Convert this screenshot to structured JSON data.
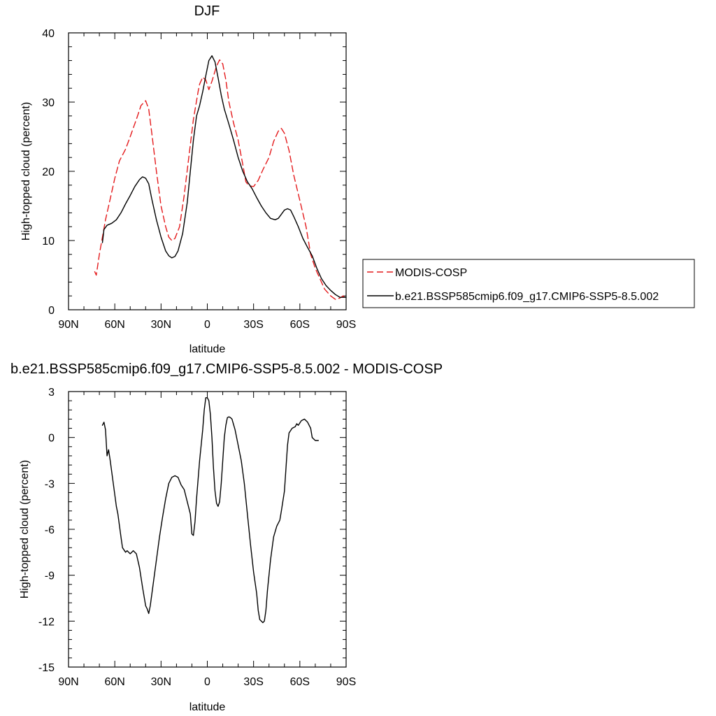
{
  "chart_data": [
    {
      "type": "line",
      "title": "DJF",
      "xlabel": "latitude",
      "ylabel": "High-topped cloud (percent)",
      "xlim": [
        90,
        -90
      ],
      "ylim": [
        0,
        40
      ],
      "xticks": [
        90,
        60,
        30,
        0,
        -30,
        -60,
        -90
      ],
      "xtick_labels": [
        "90N",
        "60N",
        "30N",
        "0",
        "30S",
        "60S",
        "90S"
      ],
      "yticks": [
        0,
        10,
        20,
        30,
        40
      ],
      "ytick_labels": [
        "0",
        "10",
        "20",
        "30",
        "40"
      ],
      "legend_position": "right",
      "series": [
        {
          "name": "MODIS-COSP",
          "color": "#e41a1c",
          "dash": "dashed",
          "points": [
            [
              73,
              5.5
            ],
            [
              72,
              5
            ],
            [
              70,
              8
            ],
            [
              68,
              10.5
            ],
            [
              66,
              13
            ],
            [
              63,
              16
            ],
            [
              60,
              19
            ],
            [
              57,
              21.5
            ],
            [
              53,
              23.2
            ],
            [
              50,
              25
            ],
            [
              46,
              27.5
            ],
            [
              43,
              29.5
            ],
            [
              40,
              30.2
            ],
            [
              38,
              29
            ],
            [
              36,
              25.5
            ],
            [
              33,
              20
            ],
            [
              30,
              15
            ],
            [
              27,
              12
            ],
            [
              25,
              10.5
            ],
            [
              23,
              10
            ],
            [
              21,
              10.3
            ],
            [
              18,
              12
            ],
            [
              15,
              16.5
            ],
            [
              12,
              22
            ],
            [
              9,
              27.5
            ],
            [
              6,
              31.5
            ],
            [
              5,
              32.6
            ],
            [
              3,
              33.6
            ],
            [
              1,
              33.2
            ],
            [
              -1,
              31.8
            ],
            [
              -3,
              33
            ],
            [
              -6,
              35.2
            ],
            [
              -8,
              36.1
            ],
            [
              -10,
              35.5
            ],
            [
              -12,
              33.2
            ],
            [
              -14,
              30
            ],
            [
              -17,
              27
            ],
            [
              -20,
              24.5
            ],
            [
              -23,
              21
            ],
            [
              -25,
              18.5
            ],
            [
              -27,
              17.9
            ],
            [
              -30,
              17.8
            ],
            [
              -33,
              18.7
            ],
            [
              -36,
              20.2
            ],
            [
              -40,
              22
            ],
            [
              -43,
              24.3
            ],
            [
              -46,
              25.8
            ],
            [
              -48,
              26.2
            ],
            [
              -50,
              25.5
            ],
            [
              -53,
              23
            ],
            [
              -56,
              19.5
            ],
            [
              -60,
              15.8
            ],
            [
              -64,
              12
            ],
            [
              -67,
              8
            ],
            [
              -70,
              6
            ],
            [
              -73,
              4.5
            ],
            [
              -76,
              3
            ],
            [
              -80,
              2
            ],
            [
              -83,
              1.5
            ],
            [
              -86,
              1.7
            ],
            [
              -88,
              2
            ],
            [
              -89,
              1.8
            ]
          ]
        },
        {
          "name": "b.e21.BSSP585cmip6.f09_g17.CMIP6-SSP5-8.5.002",
          "color": "#000000",
          "dash": "solid",
          "points": [
            [
              68,
              9.7
            ],
            [
              67,
              11.6
            ],
            [
              65,
              12.2
            ],
            [
              62,
              12.5
            ],
            [
              59,
              13
            ],
            [
              56,
              14
            ],
            [
              53,
              15.3
            ],
            [
              50,
              16.5
            ],
            [
              47,
              17.8
            ],
            [
              44,
              18.8
            ],
            [
              42,
              19.2
            ],
            [
              40,
              19
            ],
            [
              38,
              18.2
            ],
            [
              36,
              16
            ],
            [
              33,
              13
            ],
            [
              30,
              10.5
            ],
            [
              27,
              8.5
            ],
            [
              25,
              7.8
            ],
            [
              23,
              7.5
            ],
            [
              21,
              7.7
            ],
            [
              19,
              8.5
            ],
            [
              16,
              11
            ],
            [
              13,
              15.5
            ],
            [
              11,
              20
            ],
            [
              9,
              24.5
            ],
            [
              7,
              28
            ],
            [
              5,
              29.5
            ],
            [
              3,
              31.5
            ],
            [
              1,
              33.8
            ],
            [
              -1,
              36
            ],
            [
              -3,
              36.7
            ],
            [
              -5,
              35.8
            ],
            [
              -7,
              33.5
            ],
            [
              -9,
              31
            ],
            [
              -11,
              29
            ],
            [
              -14,
              26.8
            ],
            [
              -17,
              24.5
            ],
            [
              -20,
              22
            ],
            [
              -23,
              20
            ],
            [
              -26,
              18.5
            ],
            [
              -29,
              17.5
            ],
            [
              -32,
              16.2
            ],
            [
              -35,
              15
            ],
            [
              -38,
              14
            ],
            [
              -41,
              13.2
            ],
            [
              -44,
              13
            ],
            [
              -46,
              13.2
            ],
            [
              -48,
              13.8
            ],
            [
              -50,
              14.4
            ],
            [
              -52,
              14.6
            ],
            [
              -54,
              14.4
            ],
            [
              -56,
              13.5
            ],
            [
              -59,
              12
            ],
            [
              -62,
              10.3
            ],
            [
              -65,
              9
            ],
            [
              -68,
              7.8
            ],
            [
              -71,
              6
            ],
            [
              -74,
              4.5
            ],
            [
              -77,
              3.5
            ],
            [
              -80,
              2.8
            ],
            [
              -83,
              2.2
            ],
            [
              -86,
              1.8
            ],
            [
              -88,
              1.8
            ],
            [
              -90,
              1.8
            ]
          ]
        }
      ]
    },
    {
      "type": "line",
      "title": "b.e21.BSSP585cmip6.f09_g17.CMIP6-SSP5-8.5.002 - MODIS-COSP",
      "xlabel": "latitude",
      "ylabel": "High-topped cloud (percent)",
      "xlim": [
        90,
        -90
      ],
      "ylim": [
        -15,
        3
      ],
      "xticks": [
        90,
        60,
        30,
        0,
        -30,
        -60,
        -90
      ],
      "xtick_labels": [
        "90N",
        "60N",
        "30N",
        "0",
        "30S",
        "60S",
        "90S"
      ],
      "yticks": [
        -15,
        -12,
        -9,
        -6,
        -3,
        0,
        3
      ],
      "ytick_labels": [
        "-15",
        "-12",
        "-9",
        "-6",
        "-3",
        "0",
        "3"
      ],
      "series": [
        {
          "color": "#000000",
          "dash": "solid",
          "points": [
            [
              68,
              0.8
            ],
            [
              67,
              1
            ],
            [
              66,
              0.5
            ],
            [
              65,
              -1.2
            ],
            [
              64,
              -0.8
            ],
            [
              63,
              -1.5
            ],
            [
              61,
              -3
            ],
            [
              59,
              -4.5
            ],
            [
              58,
              -5
            ],
            [
              56,
              -6.5
            ],
            [
              55,
              -7.2
            ],
            [
              53,
              -7.5
            ],
            [
              52,
              -7.4
            ],
            [
              50,
              -7.6
            ],
            [
              48,
              -7.4
            ],
            [
              46,
              -7.6
            ],
            [
              44,
              -8.5
            ],
            [
              42,
              -9.8
            ],
            [
              40,
              -11
            ],
            [
              39,
              -11.2
            ],
            [
              38,
              -11.5
            ],
            [
              37,
              -11
            ],
            [
              35,
              -9.5
            ],
            [
              33,
              -8
            ],
            [
              31,
              -6.5
            ],
            [
              29,
              -5.2
            ],
            [
              27,
              -4
            ],
            [
              25,
              -3
            ],
            [
              23,
              -2.6
            ],
            [
              21,
              -2.5
            ],
            [
              19,
              -2.6
            ],
            [
              17,
              -3.1
            ],
            [
              15,
              -3.4
            ],
            [
              13,
              -4.2
            ],
            [
              11,
              -5
            ],
            [
              10,
              -6.3
            ],
            [
              9,
              -6.4
            ],
            [
              8,
              -5.5
            ],
            [
              7,
              -4
            ],
            [
              5,
              -1.5
            ],
            [
              3,
              0.5
            ],
            [
              2,
              1.8
            ],
            [
              1,
              2.6
            ],
            [
              0,
              2.6
            ],
            [
              -1,
              2.4
            ],
            [
              -2,
              1.5
            ],
            [
              -3,
              0
            ],
            [
              -4,
              -2
            ],
            [
              -5,
              -3.5
            ],
            [
              -6,
              -4.3
            ],
            [
              -7,
              -4.5
            ],
            [
              -8,
              -4.2
            ],
            [
              -9,
              -3
            ],
            [
              -10,
              -1.5
            ],
            [
              -11,
              0
            ],
            [
              -12,
              0.8
            ],
            [
              -13,
              1.3
            ],
            [
              -14,
              1.35
            ],
            [
              -15,
              1.3
            ],
            [
              -16,
              1.2
            ],
            [
              -18,
              0.5
            ],
            [
              -20,
              -0.5
            ],
            [
              -22,
              -1.5
            ],
            [
              -24,
              -3
            ],
            [
              -26,
              -5
            ],
            [
              -28,
              -7
            ],
            [
              -30,
              -8.8
            ],
            [
              -32,
              -10.2
            ],
            [
              -33,
              -11.3
            ],
            [
              -34,
              -11.9
            ],
            [
              -35,
              -12
            ],
            [
              -36,
              -12.1
            ],
            [
              -37,
              -12
            ],
            [
              -38,
              -11.3
            ],
            [
              -39,
              -10
            ],
            [
              -41,
              -8
            ],
            [
              -43,
              -6.5
            ],
            [
              -45,
              -5.8
            ],
            [
              -47,
              -5.4
            ],
            [
              -48,
              -4.8
            ],
            [
              -50,
              -3.5
            ],
            [
              -51,
              -2
            ],
            [
              -52,
              -0.5
            ],
            [
              -53,
              0.3
            ],
            [
              -55,
              0.6
            ],
            [
              -57,
              0.7
            ],
            [
              -58,
              0.9
            ],
            [
              -59,
              0.8
            ],
            [
              -61,
              1.1
            ],
            [
              -63,
              1.2
            ],
            [
              -65,
              1
            ],
            [
              -67,
              0.6
            ],
            [
              -68,
              0
            ],
            [
              -70,
              -0.2
            ],
            [
              -72,
              -0.2
            ]
          ]
        }
      ]
    }
  ]
}
